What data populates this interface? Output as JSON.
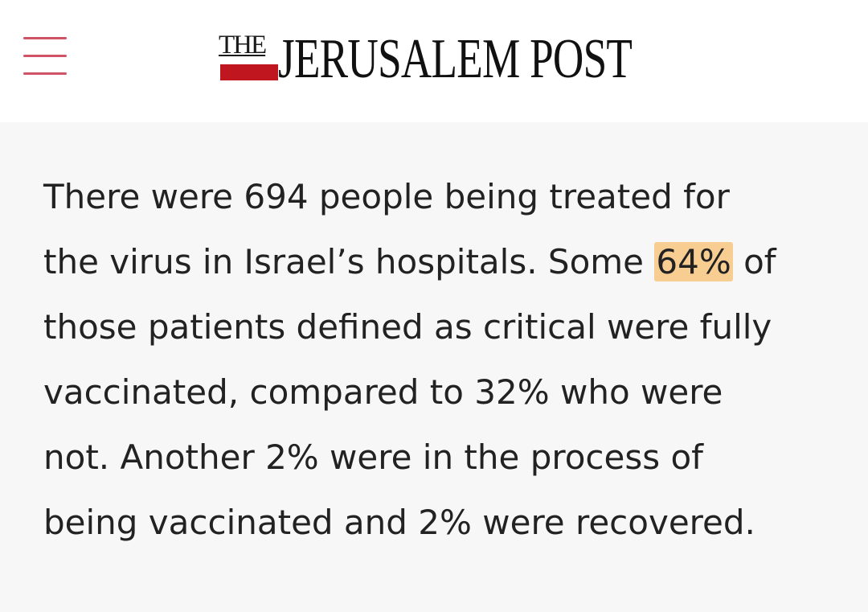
{
  "header": {
    "menu_icon": "hamburger-menu-icon",
    "logo": {
      "the": "THE",
      "name": "JERUSALEM POST"
    }
  },
  "article": {
    "line1": "There were 694 people being treated for",
    "line2_before": "the virus in Israel’s hospitals. Some ",
    "line2_highlight": "64%",
    "line2_after": " of",
    "line3": "those patients defined as critical were fully",
    "line4": "vaccinated, compared to 32% who were",
    "line5": "not. Another 2% were in the process of",
    "line6": "being vaccinated and 2% were recovered."
  },
  "colors": {
    "menu": "#d05368",
    "logo_red": "#c0161f",
    "highlight": "#f8cd92",
    "background": "#f7f7f7"
  }
}
